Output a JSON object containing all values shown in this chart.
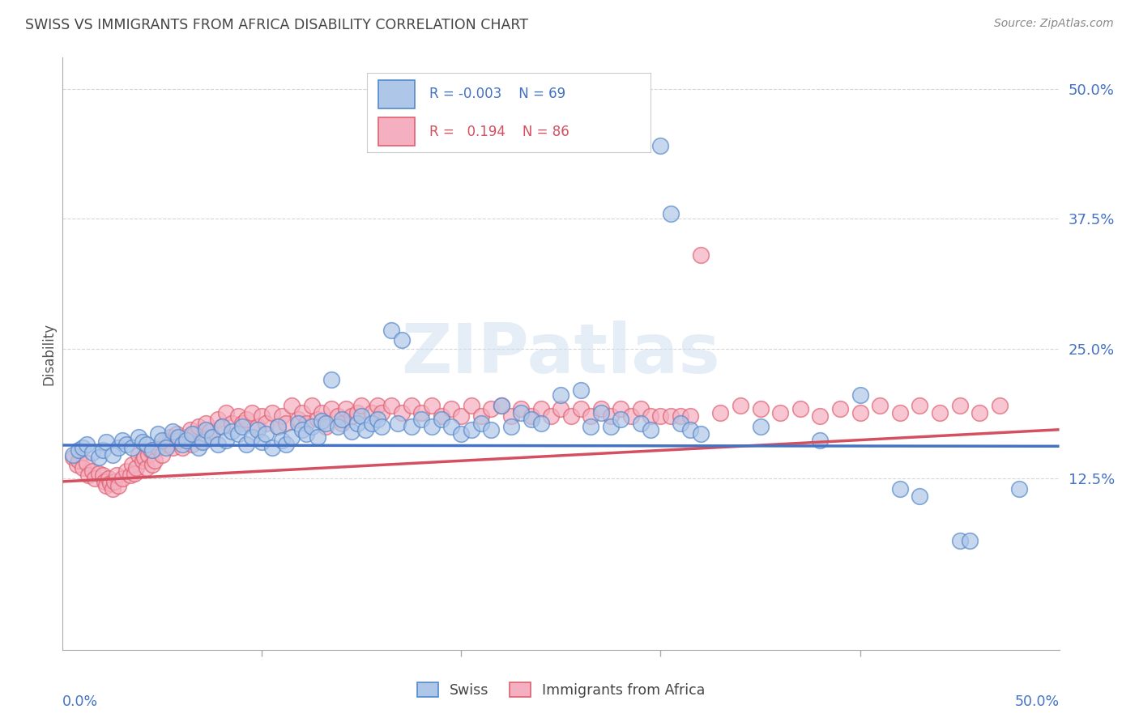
{
  "title": "SWISS VS IMMIGRANTS FROM AFRICA DISABILITY CORRELATION CHART",
  "source": "Source: ZipAtlas.com",
  "ylabel": "Disability",
  "xlim": [
    0.0,
    0.5
  ],
  "ylim": [
    -0.04,
    0.53
  ],
  "watermark": "ZIPatlas",
  "swiss_color": "#aec6e8",
  "africa_color": "#f4afc0",
  "swiss_edge_color": "#5588cc",
  "africa_edge_color": "#e06070",
  "swiss_line_color": "#4472c4",
  "africa_line_color": "#d45060",
  "axis_label_color": "#4472c4",
  "title_color": "#444444",
  "swiss_trend_y0": 0.157,
  "swiss_trend_y1": 0.156,
  "africa_trend_y0": 0.122,
  "africa_trend_y1": 0.172,
  "swiss_scatter": [
    [
      0.005,
      0.148
    ],
    [
      0.008,
      0.152
    ],
    [
      0.01,
      0.155
    ],
    [
      0.012,
      0.158
    ],
    [
      0.015,
      0.15
    ],
    [
      0.018,
      0.145
    ],
    [
      0.02,
      0.152
    ],
    [
      0.022,
      0.16
    ],
    [
      0.025,
      0.148
    ],
    [
      0.028,
      0.155
    ],
    [
      0.03,
      0.162
    ],
    [
      0.032,
      0.158
    ],
    [
      0.035,
      0.155
    ],
    [
      0.038,
      0.165
    ],
    [
      0.04,
      0.16
    ],
    [
      0.042,
      0.158
    ],
    [
      0.045,
      0.152
    ],
    [
      0.048,
      0.168
    ],
    [
      0.05,
      0.162
    ],
    [
      0.052,
      0.155
    ],
    [
      0.055,
      0.17
    ],
    [
      0.058,
      0.165
    ],
    [
      0.06,
      0.158
    ],
    [
      0.062,
      0.162
    ],
    [
      0.065,
      0.168
    ],
    [
      0.068,
      0.155
    ],
    [
      0.07,
      0.16
    ],
    [
      0.072,
      0.172
    ],
    [
      0.075,
      0.165
    ],
    [
      0.078,
      0.158
    ],
    [
      0.08,
      0.175
    ],
    [
      0.082,
      0.162
    ],
    [
      0.085,
      0.17
    ],
    [
      0.088,
      0.168
    ],
    [
      0.09,
      0.175
    ],
    [
      0.092,
      0.158
    ],
    [
      0.095,
      0.165
    ],
    [
      0.098,
      0.172
    ],
    [
      0.1,
      0.16
    ],
    [
      0.102,
      0.168
    ],
    [
      0.105,
      0.155
    ],
    [
      0.108,
      0.175
    ],
    [
      0.11,
      0.162
    ],
    [
      0.112,
      0.158
    ],
    [
      0.115,
      0.165
    ],
    [
      0.118,
      0.178
    ],
    [
      0.12,
      0.172
    ],
    [
      0.122,
      0.168
    ],
    [
      0.125,
      0.175
    ],
    [
      0.128,
      0.165
    ],
    [
      0.13,
      0.18
    ],
    [
      0.132,
      0.178
    ],
    [
      0.135,
      0.22
    ],
    [
      0.138,
      0.175
    ],
    [
      0.14,
      0.182
    ],
    [
      0.145,
      0.17
    ],
    [
      0.148,
      0.178
    ],
    [
      0.15,
      0.185
    ],
    [
      0.152,
      0.172
    ],
    [
      0.155,
      0.178
    ],
    [
      0.158,
      0.182
    ],
    [
      0.16,
      0.175
    ],
    [
      0.165,
      0.268
    ],
    [
      0.168,
      0.178
    ],
    [
      0.17,
      0.258
    ],
    [
      0.175,
      0.175
    ],
    [
      0.18,
      0.182
    ],
    [
      0.185,
      0.175
    ],
    [
      0.19,
      0.182
    ],
    [
      0.195,
      0.175
    ],
    [
      0.2,
      0.168
    ],
    [
      0.205,
      0.172
    ],
    [
      0.21,
      0.178
    ],
    [
      0.215,
      0.172
    ],
    [
      0.22,
      0.195
    ],
    [
      0.225,
      0.175
    ],
    [
      0.23,
      0.188
    ],
    [
      0.235,
      0.182
    ],
    [
      0.24,
      0.178
    ],
    [
      0.25,
      0.205
    ],
    [
      0.26,
      0.21
    ],
    [
      0.265,
      0.175
    ],
    [
      0.27,
      0.188
    ],
    [
      0.275,
      0.175
    ],
    [
      0.28,
      0.182
    ],
    [
      0.29,
      0.178
    ],
    [
      0.295,
      0.172
    ],
    [
      0.3,
      0.445
    ],
    [
      0.305,
      0.38
    ],
    [
      0.31,
      0.178
    ],
    [
      0.315,
      0.172
    ],
    [
      0.32,
      0.168
    ],
    [
      0.35,
      0.175
    ],
    [
      0.38,
      0.162
    ],
    [
      0.4,
      0.205
    ],
    [
      0.42,
      0.115
    ],
    [
      0.43,
      0.108
    ],
    [
      0.45,
      0.065
    ],
    [
      0.455,
      0.065
    ],
    [
      0.48,
      0.115
    ]
  ],
  "africa_scatter": [
    [
      0.005,
      0.145
    ],
    [
      0.007,
      0.138
    ],
    [
      0.008,
      0.142
    ],
    [
      0.01,
      0.135
    ],
    [
      0.012,
      0.14
    ],
    [
      0.013,
      0.128
    ],
    [
      0.015,
      0.132
    ],
    [
      0.016,
      0.125
    ],
    [
      0.018,
      0.13
    ],
    [
      0.02,
      0.128
    ],
    [
      0.021,
      0.122
    ],
    [
      0.022,
      0.118
    ],
    [
      0.023,
      0.125
    ],
    [
      0.024,
      0.12
    ],
    [
      0.025,
      0.115
    ],
    [
      0.026,
      0.122
    ],
    [
      0.027,
      0.128
    ],
    [
      0.028,
      0.118
    ],
    [
      0.03,
      0.125
    ],
    [
      0.032,
      0.132
    ],
    [
      0.034,
      0.128
    ],
    [
      0.035,
      0.138
    ],
    [
      0.036,
      0.13
    ],
    [
      0.037,
      0.135
    ],
    [
      0.038,
      0.148
    ],
    [
      0.04,
      0.142
    ],
    [
      0.041,
      0.145
    ],
    [
      0.042,
      0.135
    ],
    [
      0.043,
      0.148
    ],
    [
      0.044,
      0.152
    ],
    [
      0.045,
      0.138
    ],
    [
      0.046,
      0.142
    ],
    [
      0.048,
      0.155
    ],
    [
      0.05,
      0.148
    ],
    [
      0.052,
      0.162
    ],
    [
      0.053,
      0.158
    ],
    [
      0.054,
      0.165
    ],
    [
      0.055,
      0.155
    ],
    [
      0.057,
      0.168
    ],
    [
      0.058,
      0.162
    ],
    [
      0.06,
      0.155
    ],
    [
      0.062,
      0.165
    ],
    [
      0.064,
      0.172
    ],
    [
      0.065,
      0.158
    ],
    [
      0.066,
      0.168
    ],
    [
      0.068,
      0.175
    ],
    [
      0.07,
      0.162
    ],
    [
      0.072,
      0.178
    ],
    [
      0.074,
      0.17
    ],
    [
      0.075,
      0.165
    ],
    [
      0.078,
      0.182
    ],
    [
      0.08,
      0.175
    ],
    [
      0.082,
      0.188
    ],
    [
      0.085,
      0.178
    ],
    [
      0.088,
      0.185
    ],
    [
      0.09,
      0.178
    ],
    [
      0.092,
      0.182
    ],
    [
      0.095,
      0.188
    ],
    [
      0.098,
      0.175
    ],
    [
      0.1,
      0.185
    ],
    [
      0.102,
      0.178
    ],
    [
      0.105,
      0.188
    ],
    [
      0.108,
      0.175
    ],
    [
      0.11,
      0.185
    ],
    [
      0.112,
      0.178
    ],
    [
      0.115,
      0.195
    ],
    [
      0.118,
      0.182
    ],
    [
      0.12,
      0.188
    ],
    [
      0.122,
      0.178
    ],
    [
      0.125,
      0.195
    ],
    [
      0.128,
      0.182
    ],
    [
      0.13,
      0.188
    ],
    [
      0.132,
      0.175
    ],
    [
      0.135,
      0.192
    ],
    [
      0.138,
      0.185
    ],
    [
      0.14,
      0.178
    ],
    [
      0.142,
      0.192
    ],
    [
      0.145,
      0.185
    ],
    [
      0.148,
      0.188
    ],
    [
      0.15,
      0.195
    ],
    [
      0.155,
      0.188
    ],
    [
      0.158,
      0.195
    ],
    [
      0.16,
      0.188
    ],
    [
      0.165,
      0.195
    ],
    [
      0.17,
      0.188
    ],
    [
      0.175,
      0.195
    ],
    [
      0.18,
      0.188
    ],
    [
      0.185,
      0.195
    ],
    [
      0.19,
      0.185
    ],
    [
      0.195,
      0.192
    ],
    [
      0.2,
      0.185
    ],
    [
      0.205,
      0.195
    ],
    [
      0.21,
      0.185
    ],
    [
      0.215,
      0.192
    ],
    [
      0.22,
      0.195
    ],
    [
      0.225,
      0.185
    ],
    [
      0.23,
      0.192
    ],
    [
      0.235,
      0.185
    ],
    [
      0.24,
      0.192
    ],
    [
      0.245,
      0.185
    ],
    [
      0.25,
      0.192
    ],
    [
      0.255,
      0.185
    ],
    [
      0.26,
      0.192
    ],
    [
      0.265,
      0.185
    ],
    [
      0.27,
      0.192
    ],
    [
      0.275,
      0.185
    ],
    [
      0.28,
      0.192
    ],
    [
      0.285,
      0.185
    ],
    [
      0.29,
      0.192
    ],
    [
      0.295,
      0.185
    ],
    [
      0.3,
      0.185
    ],
    [
      0.305,
      0.185
    ],
    [
      0.31,
      0.185
    ],
    [
      0.315,
      0.185
    ],
    [
      0.32,
      0.34
    ],
    [
      0.33,
      0.188
    ],
    [
      0.34,
      0.195
    ],
    [
      0.35,
      0.192
    ],
    [
      0.36,
      0.188
    ],
    [
      0.37,
      0.192
    ],
    [
      0.38,
      0.185
    ],
    [
      0.39,
      0.192
    ],
    [
      0.4,
      0.188
    ],
    [
      0.41,
      0.195
    ],
    [
      0.42,
      0.188
    ],
    [
      0.43,
      0.195
    ],
    [
      0.44,
      0.188
    ],
    [
      0.45,
      0.195
    ],
    [
      0.46,
      0.188
    ],
    [
      0.47,
      0.195
    ]
  ]
}
